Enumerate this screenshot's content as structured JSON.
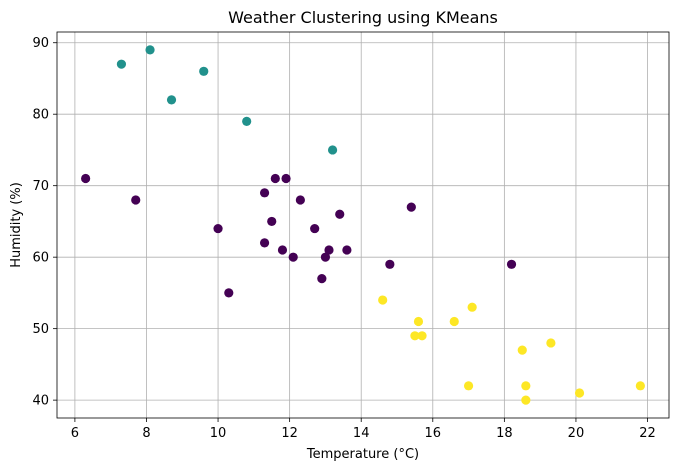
{
  "chart_data": {
    "type": "scatter",
    "title": "Weather Clustering using KMeans",
    "xlabel": "Temperature (°C)",
    "ylabel": "Humidity (%)",
    "xlim": [
      5.5,
      22.6
    ],
    "ylim": [
      37.5,
      91.5
    ],
    "xticks": [
      6,
      8,
      10,
      12,
      14,
      16,
      18,
      20,
      22
    ],
    "yticks": [
      40,
      50,
      60,
      70,
      80,
      90
    ],
    "grid": true,
    "series": [
      {
        "cluster": 0,
        "color": "#440154",
        "points": [
          [
            6.3,
            71
          ],
          [
            7.7,
            68
          ],
          [
            10.0,
            64
          ],
          [
            10.3,
            55
          ],
          [
            11.3,
            62
          ],
          [
            11.3,
            69
          ],
          [
            11.5,
            65
          ],
          [
            11.6,
            71
          ],
          [
            11.8,
            61
          ],
          [
            11.9,
            71
          ],
          [
            12.1,
            60
          ],
          [
            12.3,
            68
          ],
          [
            12.7,
            64
          ],
          [
            12.9,
            57
          ],
          [
            13.0,
            60
          ],
          [
            13.1,
            61
          ],
          [
            13.4,
            66
          ],
          [
            13.6,
            61
          ],
          [
            14.8,
            59
          ],
          [
            15.4,
            67
          ],
          [
            18.2,
            59
          ]
        ]
      },
      {
        "cluster": 1,
        "color": "#21918c",
        "points": [
          [
            7.3,
            87
          ],
          [
            8.1,
            89
          ],
          [
            8.7,
            82
          ],
          [
            9.6,
            86
          ],
          [
            10.8,
            79
          ],
          [
            13.2,
            75
          ]
        ]
      },
      {
        "cluster": 2,
        "color": "#fde725",
        "points": [
          [
            14.6,
            54
          ],
          [
            15.5,
            49
          ],
          [
            15.6,
            51
          ],
          [
            15.7,
            49
          ],
          [
            16.6,
            51
          ],
          [
            17.0,
            42
          ],
          [
            17.1,
            53
          ],
          [
            18.5,
            47
          ],
          [
            18.6,
            42
          ],
          [
            18.6,
            40
          ],
          [
            19.3,
            48
          ],
          [
            20.1,
            41
          ],
          [
            21.8,
            42
          ]
        ]
      }
    ]
  }
}
